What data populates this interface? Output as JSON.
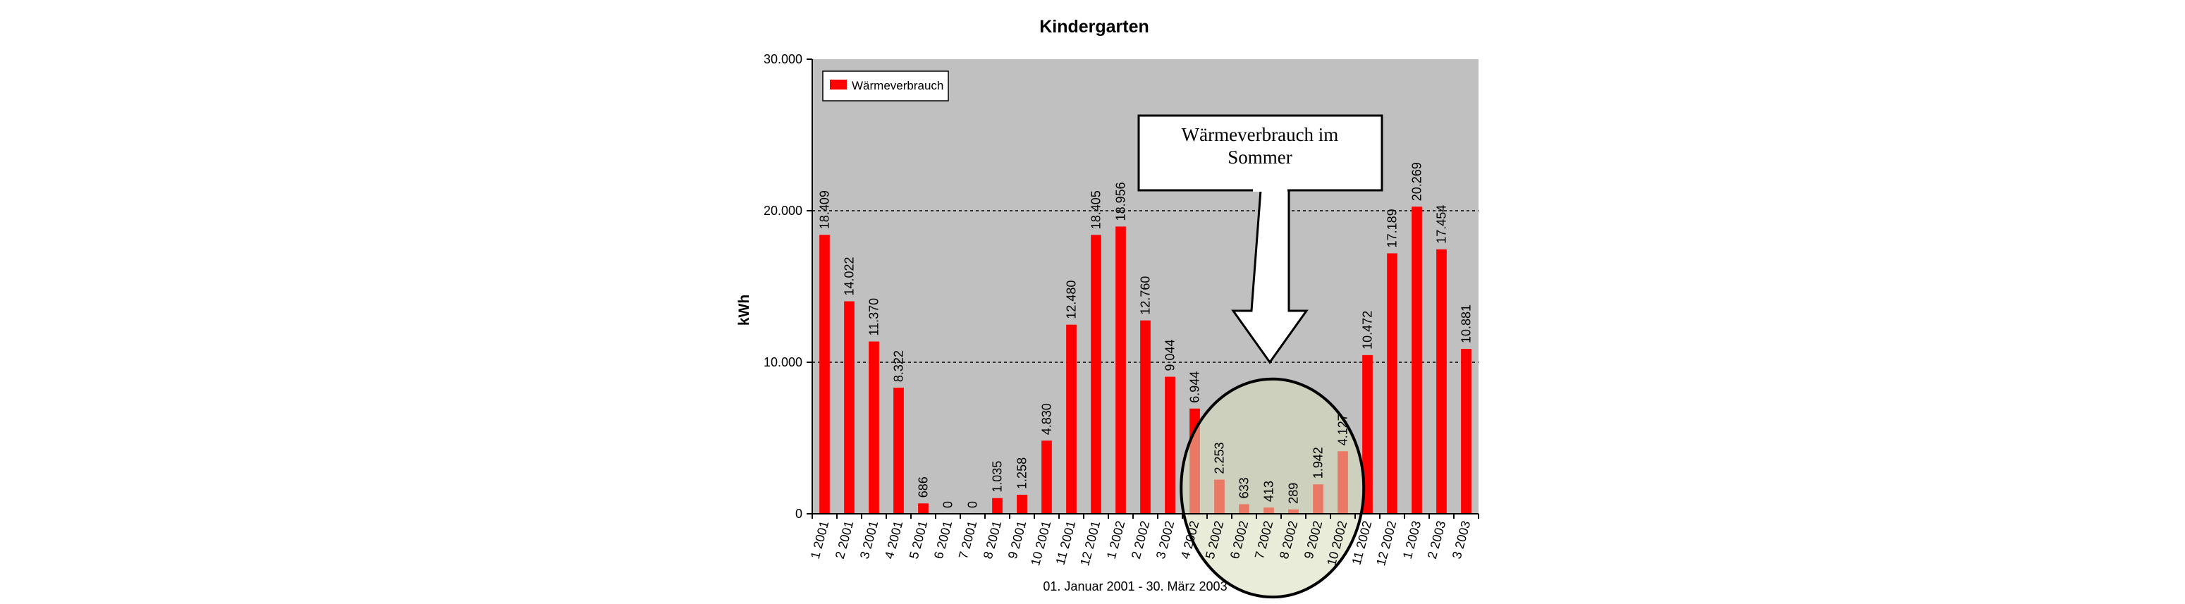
{
  "chart_data": {
    "type": "bar",
    "title": "Kindergarten",
    "xlabel": "01. Januar 2001 - 30. März 2003",
    "ylabel": "kWh",
    "ylim": [
      0,
      30000
    ],
    "yticks": [
      {
        "value": 0,
        "label": "0"
      },
      {
        "value": 10000,
        "label": "10.000"
      },
      {
        "value": 20000,
        "label": "20.000"
      },
      {
        "value": 30000,
        "label": "30.000"
      }
    ],
    "grid": "horizontal dashed at 10.000 and 20.000",
    "legend_position": "top-left",
    "categories": [
      "1 2001",
      "2 2001",
      "3 2001",
      "4 2001",
      "5 2001",
      "6 2001",
      "7 2001",
      "8 2001",
      "9 2001",
      "10 2001",
      "11 2001",
      "12 2001",
      "1 2002",
      "2 2002",
      "3 2002",
      "4 2002",
      "5 2002",
      "6 2002",
      "7 2002",
      "8 2002",
      "9 2002",
      "10 2002",
      "11 2002",
      "12 2002",
      "1 2003",
      "2 2003",
      "3 2003"
    ],
    "series": [
      {
        "name": "Wärmeverbrauch",
        "color": "#ff0000",
        "values": [
          18409,
          14022,
          11370,
          8322,
          686,
          0,
          0,
          1035,
          1258,
          4830,
          12480,
          18405,
          18956,
          12760,
          9044,
          6944,
          2253,
          633,
          413,
          289,
          1942,
          4127,
          10472,
          17189,
          20269,
          17454,
          10881
        ],
        "data_labels": [
          "18.409",
          "14.022",
          "11.370",
          "8.322",
          "686",
          "0",
          "0",
          "1.035",
          "1.258",
          "4.830",
          "12.480",
          "18.405",
          "18.956",
          "12.760",
          "9.044",
          "6.944",
          "2.253",
          "633",
          "413",
          "289",
          "1.942",
          "4.127",
          "10.472",
          "17.189",
          "20.269",
          "17.454",
          "10.881"
        ]
      }
    ],
    "annotation": {
      "lines": [
        "Wärmeverbrauch im",
        "Sommer"
      ],
      "highlight": "ellipse around summer 2002 months"
    },
    "colors": {
      "plot_background": "#c0c0c0",
      "bar": "#ff0000",
      "highlight_fill": "#d7dcb8"
    }
  }
}
